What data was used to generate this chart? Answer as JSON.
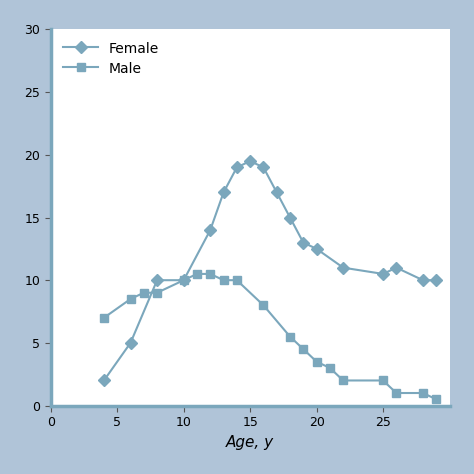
{
  "female_x": [
    4,
    6,
    8,
    10,
    12,
    13,
    14,
    15,
    16,
    17,
    18,
    19,
    20,
    22,
    25,
    26,
    28,
    29
  ],
  "female_y": [
    2,
    5,
    10,
    10,
    14,
    17,
    19,
    19.5,
    19,
    17,
    15,
    13,
    12.5,
    11,
    10.5,
    11,
    10,
    10
  ],
  "male_x": [
    4,
    6,
    7,
    8,
    10,
    11,
    12,
    13,
    14,
    16,
    18,
    19,
    20,
    21,
    22,
    25,
    26,
    28,
    29
  ],
  "male_y": [
    7,
    8.5,
    9,
    9,
    10,
    10.5,
    10.5,
    10,
    10,
    8,
    5.5,
    4.5,
    3.5,
    3,
    2,
    2,
    1,
    1,
    0.5
  ],
  "line_color": "#7ba7bc",
  "female_marker": "D",
  "male_marker": "s",
  "legend_female": "Female",
  "legend_male": "Male",
  "xlabel": "Age, y",
  "ylabel": "",
  "title": "",
  "xlim": [
    0,
    30
  ],
  "ylim": [
    0,
    30
  ],
  "xticks": [
    0,
    5,
    10,
    15,
    20,
    25
  ],
  "yticks": [
    0,
    5,
    10,
    15,
    20,
    25,
    30
  ],
  "bg_outer": "#b0c4d8",
  "bg_inner": "#ffffff",
  "linewidth": 1.5,
  "markersize": 6
}
